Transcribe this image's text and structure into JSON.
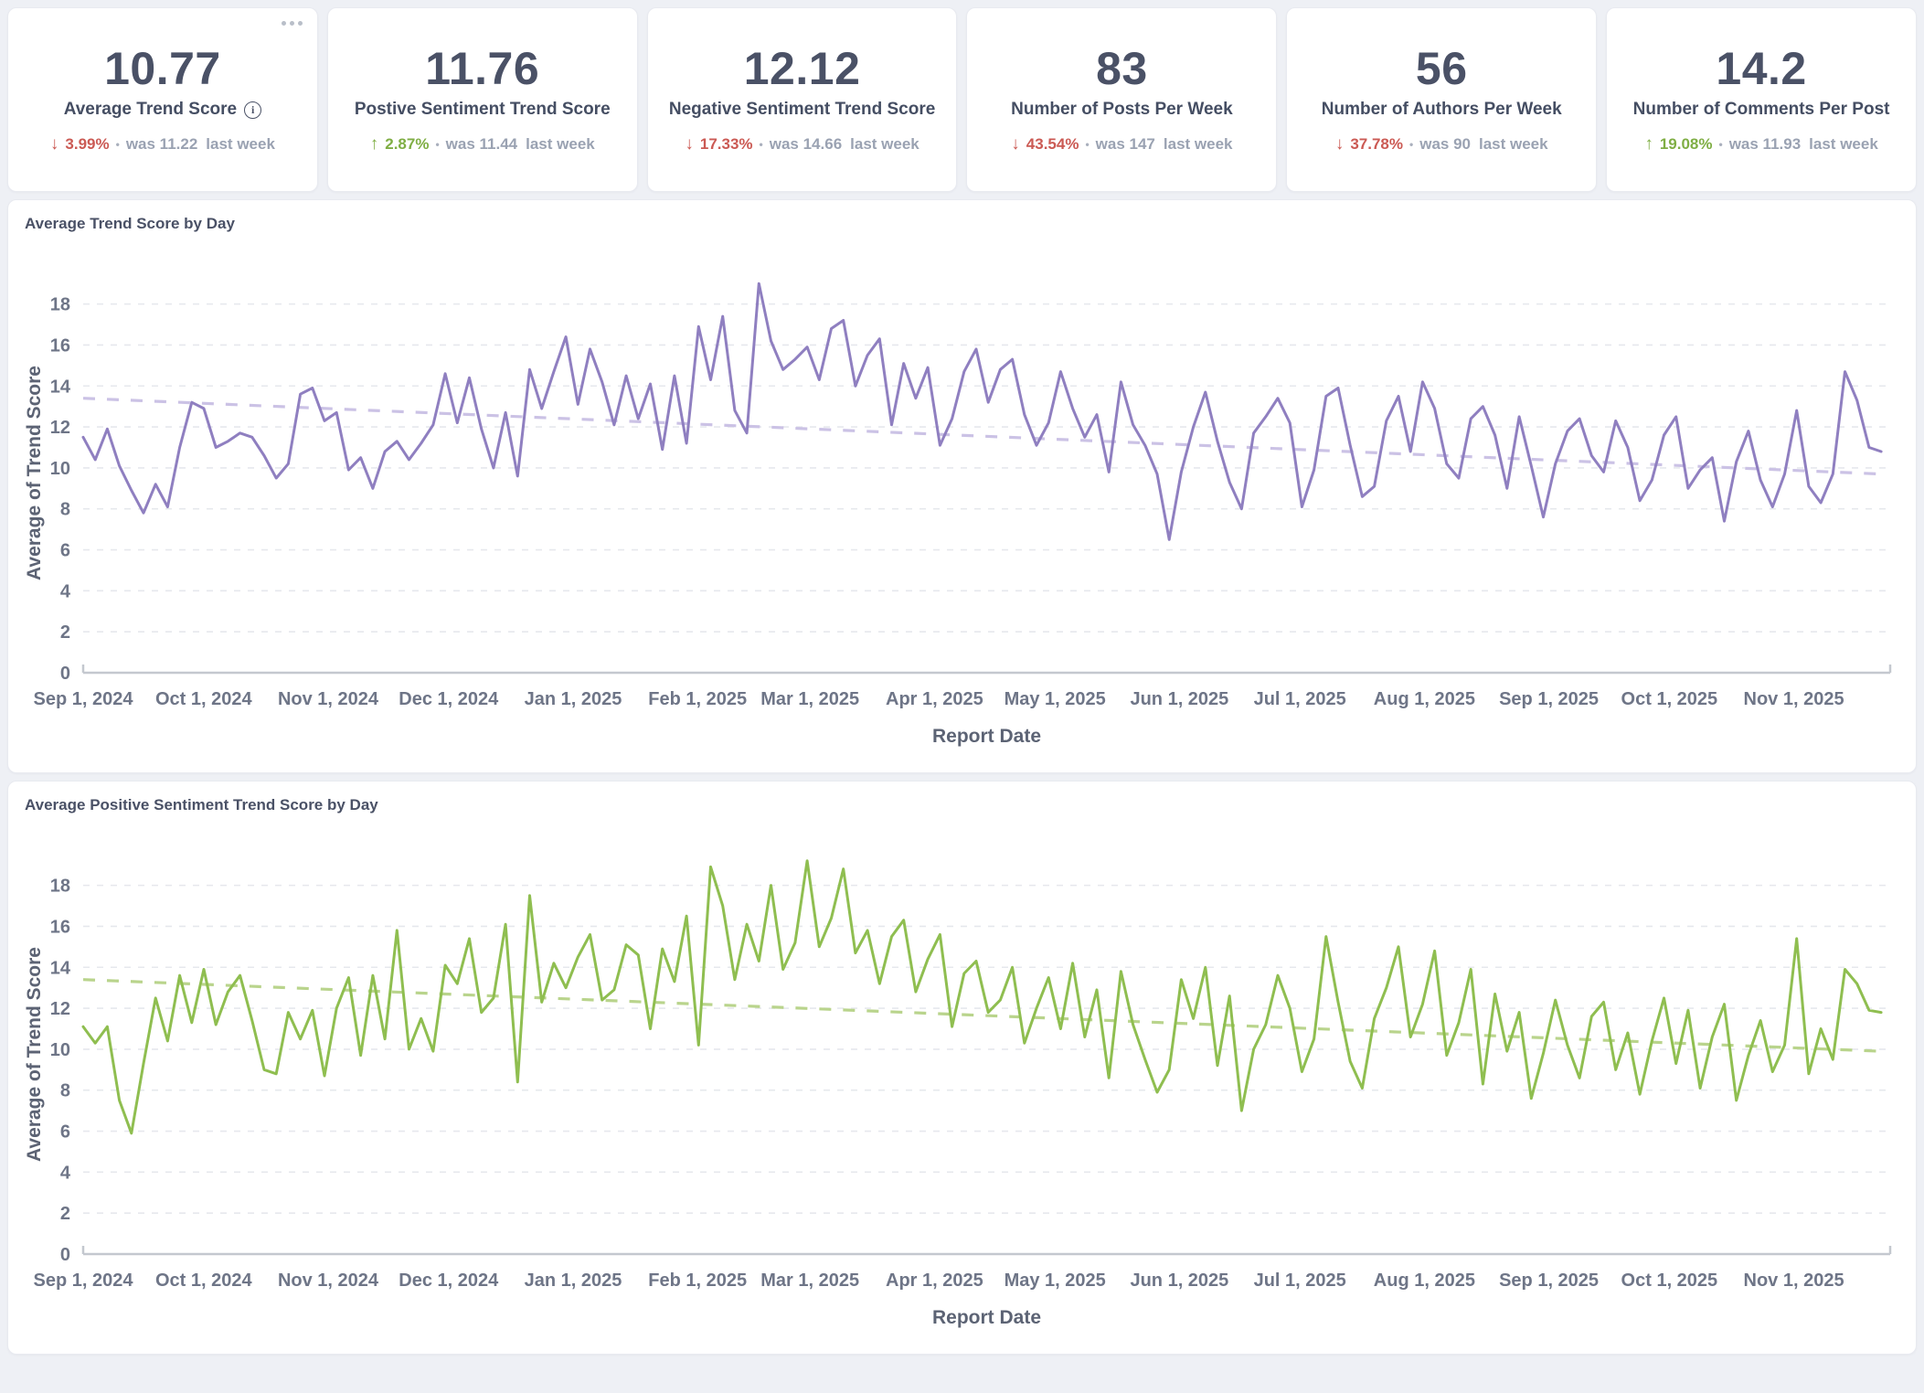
{
  "theme": {
    "up_color": "#7fae44",
    "down_color": "#cb5a54",
    "muted_text": "#9aa2b2",
    "grid_color": "#e6e8ed",
    "axis_color": "#c4c8cf"
  },
  "icons": {
    "arrow_up": "↑",
    "arrow_down": "↓",
    "info_glyph": "i",
    "menu": "more-options"
  },
  "kpi": {
    "separator": "•",
    "cards": [
      {
        "value": "10.77",
        "label": "Average Trend Score",
        "direction": "down",
        "change": "3.99%",
        "previous": "was 11.22",
        "period": "last week"
      },
      {
        "value": "11.76",
        "label": "Postive Sentiment Trend Score",
        "direction": "up",
        "change": "2.87%",
        "previous": "was 11.44",
        "period": "last week"
      },
      {
        "value": "12.12",
        "label": "Negative Sentiment Trend Score",
        "direction": "down",
        "change": "17.33%",
        "previous": "was 14.66",
        "period": "last week"
      },
      {
        "value": "83",
        "label": "Number of Posts Per Week",
        "direction": "down",
        "change": "43.54%",
        "previous": "was 147",
        "period": "last week"
      },
      {
        "value": "56",
        "label": "Number of Authors Per Week",
        "direction": "down",
        "change": "37.78%",
        "previous": "was 90",
        "period": "last week"
      },
      {
        "value": "14.2",
        "label": "Number of Comments Per Post",
        "direction": "up",
        "change": "19.08%",
        "previous": "was 11.93",
        "period": "last week"
      }
    ]
  },
  "chart_data": [
    {
      "type": "line",
      "title": "Average Trend Score by Day",
      "xlabel": "Report Date",
      "ylabel": "Average of Trend Score",
      "ylim": [
        0,
        19.5
      ],
      "yticks": [
        0,
        2,
        4,
        6,
        8,
        10,
        12,
        14,
        16,
        18
      ],
      "grid": "dashed-horizontal",
      "legend": "none",
      "x_start": "Sep 1, 2024",
      "x_end": "late Nov 2025",
      "total_days": 450,
      "sample_interval_days": 3,
      "x_ticks": [
        {
          "label": "Sep 1, 2024",
          "day": 0
        },
        {
          "label": "Oct 1, 2024",
          "day": 30
        },
        {
          "label": "Nov 1, 2024",
          "day": 61
        },
        {
          "label": "Dec 1, 2024",
          "day": 91
        },
        {
          "label": "Jan 1, 2025",
          "day": 122
        },
        {
          "label": "Feb 1, 2025",
          "day": 153
        },
        {
          "label": "Mar 1, 2025",
          "day": 181
        },
        {
          "label": "Apr 1, 2025",
          "day": 212
        },
        {
          "label": "May 1, 2025",
          "day": 242
        },
        {
          "label": "Jun 1, 2025",
          "day": 273
        },
        {
          "label": "Jul 1, 2025",
          "day": 303
        },
        {
          "label": "Aug 1, 2025",
          "day": 334
        },
        {
          "label": "Sep 1, 2025",
          "day": 365
        },
        {
          "label": "Oct 1, 2025",
          "day": 395
        },
        {
          "label": "Nov 1, 2025",
          "day": 426
        }
      ],
      "trend": {
        "start": 13.4,
        "end": 9.7,
        "color": "#cbc2e5",
        "style": "dashed"
      },
      "series": [
        {
          "name": "Average of Trend Score",
          "color": "#8f7fc0",
          "values": [
            11.5,
            10.4,
            11.9,
            10.1,
            8.9,
            7.8,
            9.2,
            8.1,
            11.0,
            13.2,
            12.9,
            11.0,
            11.3,
            11.7,
            11.5,
            10.6,
            9.5,
            10.2,
            13.6,
            13.9,
            12.3,
            12.7,
            9.9,
            10.5,
            9.0,
            10.8,
            11.3,
            10.4,
            11.2,
            12.1,
            14.6,
            12.2,
            14.4,
            11.9,
            10.0,
            12.7,
            9.6,
            14.8,
            12.9,
            14.7,
            16.4,
            13.1,
            15.8,
            14.2,
            12.1,
            14.5,
            12.4,
            14.1,
            10.9,
            14.5,
            11.2,
            16.9,
            14.3,
            17.4,
            12.8,
            11.7,
            19.0,
            16.2,
            14.8,
            15.3,
            15.9,
            14.3,
            16.8,
            17.2,
            14.0,
            15.5,
            16.3,
            12.1,
            15.1,
            13.4,
            14.9,
            11.1,
            12.4,
            14.7,
            15.8,
            13.2,
            14.8,
            15.3,
            12.6,
            11.1,
            12.2,
            14.7,
            12.9,
            11.5,
            12.6,
            9.8,
            14.2,
            12.1,
            11.1,
            9.7,
            6.5,
            9.8,
            12.0,
            13.7,
            11.3,
            9.3,
            8.0,
            11.7,
            12.5,
            13.4,
            12.2,
            8.1,
            9.9,
            13.5,
            13.9,
            11.1,
            8.6,
            9.1,
            12.3,
            13.5,
            10.8,
            14.2,
            12.9,
            10.2,
            9.5,
            12.4,
            13.0,
            11.6,
            9.0,
            12.5,
            10.1,
            7.6,
            10.2,
            11.8,
            12.4,
            10.6,
            9.8,
            12.3,
            11.0,
            8.4,
            9.4,
            11.6,
            12.5,
            9.0,
            9.9,
            10.5,
            7.4,
            10.3,
            11.8,
            9.4,
            8.1,
            9.7,
            12.8,
            9.1,
            8.3,
            9.7,
            14.7,
            13.3,
            11.0,
            10.8
          ]
        }
      ]
    },
    {
      "type": "line",
      "title": "Average Positive Sentiment Trend Score by Day",
      "xlabel": "Report Date",
      "ylabel": "Average of Trend Score",
      "ylim": [
        0,
        19.5
      ],
      "yticks": [
        0,
        2,
        4,
        6,
        8,
        10,
        12,
        14,
        16,
        18
      ],
      "grid": "dashed-horizontal",
      "legend": "none",
      "x_start": "Sep 1, 2024",
      "x_end": "late Nov 2025",
      "total_days": 450,
      "sample_interval_days": 3,
      "x_ticks": [
        {
          "label": "Sep 1, 2024",
          "day": 0
        },
        {
          "label": "Oct 1, 2024",
          "day": 30
        },
        {
          "label": "Nov 1, 2024",
          "day": 61
        },
        {
          "label": "Dec 1, 2024",
          "day": 91
        },
        {
          "label": "Jan 1, 2025",
          "day": 122
        },
        {
          "label": "Feb 1, 2025",
          "day": 153
        },
        {
          "label": "Mar 1, 2025",
          "day": 181
        },
        {
          "label": "Apr 1, 2025",
          "day": 212
        },
        {
          "label": "May 1, 2025",
          "day": 242
        },
        {
          "label": "Jun 1, 2025",
          "day": 273
        },
        {
          "label": "Jul 1, 2025",
          "day": 303
        },
        {
          "label": "Aug 1, 2025",
          "day": 334
        },
        {
          "label": "Sep 1, 2025",
          "day": 365
        },
        {
          "label": "Oct 1, 2025",
          "day": 395
        },
        {
          "label": "Nov 1, 2025",
          "day": 426
        }
      ],
      "trend": {
        "start": 13.4,
        "end": 9.9,
        "color": "#b9d48c",
        "style": "dashed"
      },
      "series": [
        {
          "name": "Average of Trend Score",
          "color": "#8fbe50",
          "values": [
            11.1,
            10.3,
            11.1,
            7.5,
            5.9,
            9.3,
            12.5,
            10.4,
            13.6,
            11.3,
            13.9,
            11.2,
            12.8,
            13.6,
            11.4,
            9.0,
            8.8,
            11.8,
            10.5,
            11.9,
            8.7,
            12.0,
            13.5,
            9.7,
            13.6,
            10.5,
            15.8,
            10.0,
            11.5,
            9.9,
            14.1,
            13.2,
            15.4,
            11.8,
            12.5,
            16.1,
            8.4,
            17.5,
            12.3,
            14.2,
            13.0,
            14.5,
            15.6,
            12.4,
            12.9,
            15.1,
            14.6,
            11.0,
            14.9,
            13.3,
            16.5,
            10.2,
            18.9,
            17.0,
            13.4,
            16.1,
            14.3,
            18.0,
            13.9,
            15.2,
            19.2,
            15.0,
            16.4,
            18.8,
            14.7,
            15.8,
            13.2,
            15.5,
            16.3,
            12.8,
            14.4,
            15.6,
            11.1,
            13.7,
            14.3,
            11.8,
            12.4,
            14.0,
            10.3,
            12.0,
            13.5,
            11.0,
            14.2,
            10.6,
            12.9,
            8.6,
            13.8,
            11.2,
            9.5,
            7.9,
            9.0,
            13.4,
            11.5,
            14.0,
            9.2,
            12.6,
            7.0,
            10.0,
            11.2,
            13.6,
            12.0,
            8.9,
            10.5,
            15.5,
            12.3,
            9.4,
            8.1,
            11.5,
            13.0,
            15.0,
            10.6,
            12.2,
            14.8,
            9.7,
            11.3,
            13.9,
            8.3,
            12.7,
            9.9,
            11.8,
            7.6,
            9.8,
            12.4,
            10.2,
            8.6,
            11.6,
            12.3,
            9.0,
            10.8,
            7.8,
            10.4,
            12.5,
            9.3,
            11.9,
            8.1,
            10.6,
            12.2,
            7.5,
            9.7,
            11.4,
            8.9,
            10.2,
            15.4,
            8.8,
            11.0,
            9.5,
            13.9,
            13.2,
            11.9,
            11.8
          ]
        }
      ]
    }
  ]
}
